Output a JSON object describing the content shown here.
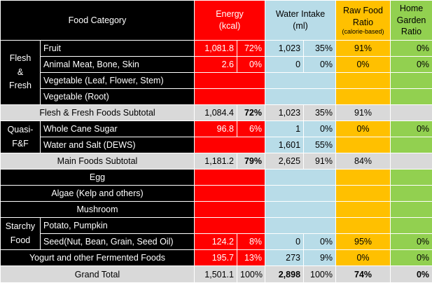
{
  "header": {
    "category": "Food Category",
    "energy_line1": "Energy",
    "energy_line2": "(kcal)",
    "water_line1": "Water Intake",
    "water_line2": "(ml)",
    "raw_line1": "Raw Food",
    "raw_line2": "Ratio",
    "raw_line3": "(calorie-based)",
    "home_line1": "Home",
    "home_line2": "Garden",
    "home_line3": "Ratio"
  },
  "groups": {
    "flesh_line1": "Flesh",
    "flesh_line2": "&",
    "flesh_line3": "Fresh",
    "quasi_line1": "Quasi-",
    "quasi_line2": "F&F",
    "starchy_line1": "Starchy",
    "starchy_line2": "Food"
  },
  "rows": {
    "fruit": {
      "label": "Fruit",
      "energy": "1,081.8",
      "energy_pct": "72%",
      "water": "1,023",
      "water_pct": "35%",
      "raw": "91%",
      "home": "0%"
    },
    "animal": {
      "label": "Animal Meat, Bone, Skin",
      "energy": "2.6",
      "energy_pct": "0%",
      "water": "0",
      "water_pct": "0%",
      "raw": "0%",
      "home": "0%"
    },
    "veg_leaf": {
      "label": "Vegetable (Leaf, Flower, Stem)"
    },
    "veg_root": {
      "label": "Vegetable (Root)"
    },
    "flesh_subtotal": {
      "label": "Flesh & Fresh Foods Subtotal",
      "energy": "1,084.4",
      "energy_pct": "72%",
      "water": "1,023",
      "water_pct": "35%",
      "raw": "91%"
    },
    "cane_sugar": {
      "label": "Whole Cane Sugar",
      "energy": "96.8",
      "energy_pct": "6%",
      "water": "1",
      "water_pct": "0%",
      "raw": "0%",
      "home": "0%"
    },
    "water_salt": {
      "label": "Water and Salt (DEWS)",
      "water": "1,601",
      "water_pct": "55%"
    },
    "main_subtotal": {
      "label": "Main Foods Subtotal",
      "energy": "1,181.2",
      "energy_pct": "79%",
      "water": "2,625",
      "water_pct": "91%",
      "raw": "84%"
    },
    "egg": {
      "label": "Egg"
    },
    "algae": {
      "label": "Algae (Kelp and others)"
    },
    "mushroom": {
      "label": "Mushroom"
    },
    "potato": {
      "label": "Potato, Pumpkin"
    },
    "seed": {
      "label": "Seed(Nut, Bean, Grain, Seed Oil)",
      "energy": "124.2",
      "energy_pct": "8%",
      "water": "0",
      "water_pct": "0%",
      "raw": "95%",
      "home": "0%"
    },
    "yogurt": {
      "label": "Yogurt and other Fermented Foods",
      "energy": "195.7",
      "energy_pct": "13%",
      "water": "273",
      "water_pct": "9%",
      "raw": "0%",
      "home": "0%"
    },
    "grand_total": {
      "label": "Grand Total",
      "energy": "1,501.1",
      "energy_pct": "100%",
      "water": "2,898",
      "water_pct": "100%",
      "raw": "74%",
      "home": "0%"
    }
  },
  "colors": {
    "energy": "#ff0000",
    "water": "#b8dce8",
    "raw": "#ffc000",
    "home": "#92d050",
    "subtotal": "#d9d9d9",
    "category": "#000000"
  }
}
